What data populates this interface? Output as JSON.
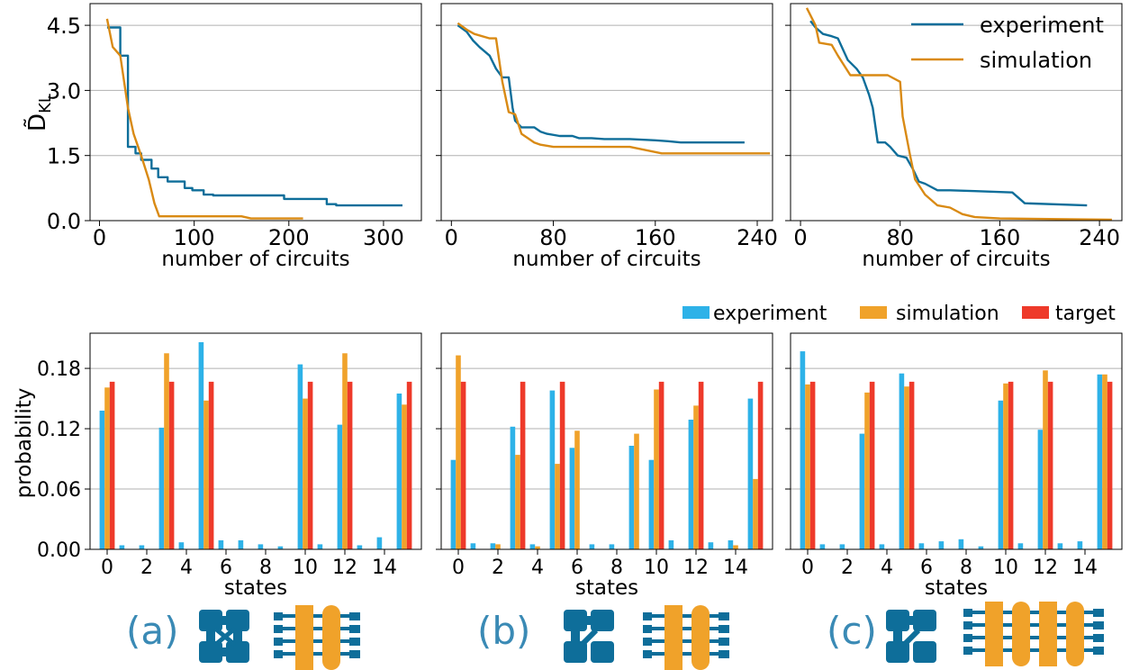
{
  "colors": {
    "experiment_line": "#0e6e9a",
    "simulation_line": "#d98a14",
    "experiment_bar": "#2eb2e8",
    "simulation_bar": "#f0a22a",
    "target_bar": "#ee3a2a",
    "grid": "#b0b0b0",
    "schematic_blue": "#0e6e9a",
    "schematic_orange": "#f0a22a",
    "panel_label": "#3a8ab5"
  },
  "top_legend": [
    "experiment",
    "simulation"
  ],
  "bottom_legend": [
    "experiment",
    "simulation",
    "target"
  ],
  "panel_labels": [
    "(a)",
    "(b)",
    "(c)"
  ],
  "chart_data": [
    {
      "type": "line",
      "panel": "(a) top",
      "xlabel": "number of circuits",
      "ylabel": "D̃",
      "ylabel_sub": "KL",
      "xlim": [
        -10,
        340
      ],
      "ylim": [
        0,
        5.0
      ],
      "xticks": [
        0,
        100,
        200,
        300
      ],
      "yticks": [
        0.0,
        1.5,
        3.0,
        4.5
      ],
      "ytick_labels": [
        "0.0",
        "1.5",
        "3.0",
        "4.5"
      ],
      "grid": "horizontal",
      "series": [
        {
          "name": "experiment",
          "x": [
            8,
            22,
            22,
            30,
            30,
            38,
            38,
            44,
            44,
            55,
            55,
            62,
            62,
            72,
            72,
            90,
            90,
            98,
            98,
            110,
            110,
            120,
            120,
            195,
            195,
            240,
            240,
            250,
            250,
            320
          ],
          "y": [
            4.45,
            4.45,
            3.8,
            3.8,
            1.7,
            1.7,
            1.55,
            1.55,
            1.4,
            1.4,
            1.2,
            1.2,
            1.0,
            1.0,
            0.9,
            0.9,
            0.75,
            0.75,
            0.7,
            0.7,
            0.6,
            0.6,
            0.58,
            0.58,
            0.5,
            0.5,
            0.38,
            0.38,
            0.35,
            0.35
          ]
        },
        {
          "name": "simulation",
          "x": [
            8,
            14,
            22,
            30,
            30,
            36,
            40,
            44,
            52,
            58,
            63,
            150,
            160,
            215
          ],
          "y": [
            4.65,
            4.0,
            3.8,
            2.6,
            2.6,
            2.0,
            1.75,
            1.5,
            0.95,
            0.4,
            0.1,
            0.1,
            0.05,
            0.05
          ]
        }
      ]
    },
    {
      "type": "line",
      "panel": "(b) top",
      "xlabel": "number of circuits",
      "xlim": [
        -8,
        252
      ],
      "ylim": [
        0,
        5.0
      ],
      "xticks": [
        0,
        80,
        160,
        240
      ],
      "yticks": [
        0.0,
        1.5,
        3.0,
        4.5
      ],
      "grid": "horizontal",
      "series": [
        {
          "name": "experiment",
          "x": [
            5,
            12,
            17,
            22,
            30,
            35,
            40,
            45,
            48,
            50,
            55,
            65,
            70,
            75,
            85,
            95,
            100,
            110,
            120,
            140,
            160,
            170,
            180,
            230
          ],
          "y": [
            4.5,
            4.35,
            4.15,
            4.0,
            3.8,
            3.5,
            3.3,
            3.3,
            2.6,
            2.3,
            2.15,
            2.15,
            2.05,
            2.0,
            1.95,
            1.95,
            1.9,
            1.9,
            1.88,
            1.88,
            1.85,
            1.83,
            1.8,
            1.8
          ]
        },
        {
          "name": "simulation",
          "x": [
            5,
            12,
            18,
            30,
            35,
            40,
            45,
            50,
            55,
            60,
            65,
            70,
            80,
            100,
            140,
            165,
            180,
            250
          ],
          "y": [
            4.55,
            4.4,
            4.3,
            4.2,
            4.2,
            3.2,
            2.5,
            2.45,
            2.0,
            1.9,
            1.8,
            1.75,
            1.7,
            1.7,
            1.7,
            1.55,
            1.55,
            1.55
          ]
        }
      ]
    },
    {
      "type": "line",
      "panel": "(c) top",
      "xlabel": "number of circuits",
      "xlim": [
        -8,
        258
      ],
      "ylim": [
        0,
        5.0
      ],
      "xticks": [
        0,
        80,
        160,
        240
      ],
      "yticks": [
        0.0,
        1.5,
        3.0,
        4.5
      ],
      "grid": "horizontal",
      "series": [
        {
          "name": "experiment",
          "x": [
            8,
            12,
            18,
            25,
            30,
            38,
            45,
            50,
            55,
            58,
            62,
            68,
            72,
            78,
            85,
            90,
            95,
            100,
            110,
            120,
            140,
            170,
            180,
            230
          ],
          "y": [
            4.6,
            4.45,
            4.3,
            4.25,
            4.2,
            3.7,
            3.5,
            3.3,
            2.9,
            2.6,
            1.8,
            1.8,
            1.7,
            1.5,
            1.45,
            1.2,
            0.9,
            0.85,
            0.7,
            0.7,
            0.68,
            0.65,
            0.4,
            0.35
          ]
        },
        {
          "name": "simulation",
          "x": [
            5,
            12,
            15,
            25,
            30,
            40,
            70,
            80,
            82,
            88,
            92,
            100,
            110,
            120,
            130,
            140,
            160,
            250
          ],
          "y": [
            4.9,
            4.5,
            4.1,
            4.05,
            3.8,
            3.35,
            3.35,
            3.2,
            2.4,
            1.5,
            0.95,
            0.6,
            0.35,
            0.3,
            0.15,
            0.08,
            0.05,
            0.02
          ]
        }
      ]
    },
    {
      "type": "bar",
      "panel": "(a) bottom",
      "xlabel": "states",
      "ylabel": "probability",
      "categories": [
        0,
        1,
        2,
        3,
        4,
        5,
        6,
        7,
        8,
        9,
        10,
        11,
        12,
        13,
        14,
        15
      ],
      "xticks": [
        0,
        2,
        4,
        6,
        8,
        10,
        12,
        14
      ],
      "yticks": [
        0.0,
        0.06,
        0.12,
        0.18
      ],
      "ytick_labels": [
        "0.00",
        "0.06",
        "0.12",
        "0.18"
      ],
      "ylim": [
        0,
        0.215
      ],
      "grid": "horizontal",
      "series": [
        {
          "name": "experiment",
          "values": [
            0.138,
            0.004,
            0.004,
            0.121,
            0.007,
            0.206,
            0.009,
            0.009,
            0.005,
            0.003,
            0.184,
            0.005,
            0.124,
            0.004,
            0.012,
            0.155
          ]
        },
        {
          "name": "simulation",
          "values": [
            0.161,
            0,
            0,
            0.195,
            0,
            0.148,
            0,
            0,
            0,
            0,
            0.15,
            0,
            0.195,
            0,
            0,
            0.144
          ]
        },
        {
          "name": "target",
          "values": [
            0.1667,
            0,
            0,
            0.1667,
            0,
            0.1667,
            0,
            0,
            0,
            0,
            0.1667,
            0,
            0.1667,
            0,
            0,
            0.1667
          ]
        }
      ]
    },
    {
      "type": "bar",
      "panel": "(b) bottom",
      "xlabel": "states",
      "categories": [
        0,
        1,
        2,
        3,
        4,
        5,
        6,
        7,
        8,
        9,
        10,
        11,
        12,
        13,
        14,
        15
      ],
      "xticks": [
        0,
        2,
        4,
        6,
        8,
        10,
        12,
        14
      ],
      "ylim": [
        0,
        0.215
      ],
      "grid": "horizontal",
      "series": [
        {
          "name": "experiment",
          "values": [
            0.089,
            0.006,
            0.006,
            0.122,
            0.005,
            0.158,
            0.101,
            0.005,
            0.005,
            0.103,
            0.089,
            0.009,
            0.129,
            0.007,
            0.009,
            0.15
          ]
        },
        {
          "name": "simulation",
          "values": [
            0.193,
            0,
            0.005,
            0.094,
            0.003,
            0.085,
            0.118,
            0,
            0,
            0.115,
            0.159,
            0,
            0.143,
            0,
            0.004,
            0.07
          ]
        },
        {
          "name": "target",
          "values": [
            0.1667,
            0,
            0,
            0.1667,
            0,
            0.1667,
            0,
            0,
            0,
            0,
            0.1667,
            0,
            0.1667,
            0,
            0,
            0.1667
          ]
        }
      ]
    },
    {
      "type": "bar",
      "panel": "(c) bottom",
      "xlabel": "states",
      "categories": [
        0,
        1,
        2,
        3,
        4,
        5,
        6,
        7,
        8,
        9,
        10,
        11,
        12,
        13,
        14,
        15
      ],
      "xticks": [
        0,
        2,
        4,
        6,
        8,
        10,
        12,
        14
      ],
      "ylim": [
        0,
        0.215
      ],
      "grid": "horizontal",
      "series": [
        {
          "name": "experiment",
          "values": [
            0.197,
            0.005,
            0.005,
            0.115,
            0.005,
            0.175,
            0.006,
            0.008,
            0.01,
            0.003,
            0.148,
            0.006,
            0.119,
            0.006,
            0.008,
            0.174
          ]
        },
        {
          "name": "simulation",
          "values": [
            0.164,
            0,
            0,
            0.156,
            0,
            0.162,
            0,
            0,
            0,
            0,
            0.165,
            0,
            0.178,
            0,
            0,
            0.174
          ]
        },
        {
          "name": "target",
          "values": [
            0.1667,
            0,
            0,
            0.1667,
            0,
            0.1667,
            0,
            0,
            0,
            0,
            0.1667,
            0,
            0.1667,
            0,
            0,
            0.1667
          ]
        }
      ]
    }
  ]
}
